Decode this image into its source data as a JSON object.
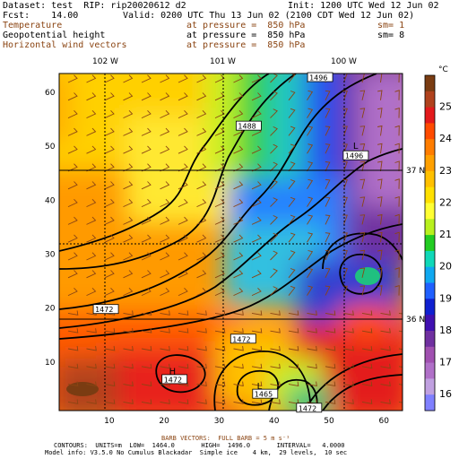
{
  "header": {
    "dataset": "Dataset: test  RIP: rip20020612 d2",
    "init": "Init: 1200 UTC Wed 12 Jun 02",
    "fcst": "Fcst:    14.00",
    "valid": "Valid: 0200 UTC Thu 13 Jun 02 (2100 CDT Wed 12 Jun 02)",
    "rows": [
      {
        "field": "Temperature",
        "level": "at pressure =  850 hPa",
        "extra": "sm= 1"
      },
      {
        "field": "Geopotential height",
        "level": "at pressure =  850 hPa",
        "extra": "sm= 8"
      },
      {
        "field": "Horizontal wind vectors",
        "level": "at pressure =  850 hPa",
        "extra": ""
      }
    ]
  },
  "map": {
    "lon_labels": [
      "102 W",
      "101 W",
      "100 W"
    ],
    "lat_labels": [
      "37 N",
      "36 N"
    ],
    "x_ticks": [
      "10",
      "20",
      "30",
      "40",
      "50",
      "60"
    ],
    "y_ticks": [
      "10",
      "20",
      "30",
      "40",
      "50",
      "60"
    ],
    "height_labels": [
      {
        "text": "1496",
        "x": 48.5,
        "y": 62.5
      },
      {
        "text": "1488",
        "x": 35.5,
        "y": 53.5
      },
      {
        "text": "1496",
        "x": 55,
        "y": 48
      },
      {
        "text": "1472",
        "x": 9.5,
        "y": 19.5
      },
      {
        "text": "1472",
        "x": 34.5,
        "y": 14
      },
      {
        "text": "1472",
        "x": 22,
        "y": 6.5
      },
      {
        "text": "1465",
        "x": 38.5,
        "y": 3.8
      },
      {
        "text": "1472",
        "x": 46.5,
        "y": 1.2
      }
    ],
    "hl_markers": [
      {
        "text": "H",
        "x": 21.5,
        "y": 8.2
      },
      {
        "text": "L",
        "x": 37.5,
        "y": 5.5
      },
      {
        "text": "L",
        "x": 55,
        "y": 50
      }
    ]
  },
  "colorbar": {
    "unit": "°C",
    "labels": [
      "25",
      "24",
      "23",
      "22",
      "21",
      "20",
      "19",
      "18",
      "17",
      "16"
    ],
    "colors": [
      "#7a3c12",
      "#b0421d",
      "#e31a1c",
      "#ff4b00",
      "#ff7d00",
      "#ffa000",
      "#ffc000",
      "#ffe000",
      "#ffff33",
      "#b8f01e",
      "#22cc22",
      "#10d8b8",
      "#10a8f0",
      "#2060ff",
      "#1020d0",
      "#4010b0",
      "#7030a0",
      "#a050b0",
      "#b070c8",
      "#c0a0e0",
      "#8080ff"
    ]
  },
  "footer": {
    "barb_line": "BARB VECTORS:  FULL BARB = 5 m s⁻¹",
    "contour_line": "CONTOURS:  UNITS=m  LOW=  1464.0       HIGH=  1496.0       INTERVAL=   4.0000",
    "model_line": "Model info: V3.5.0 No Cumulus Blackadar  Simple ice    4 km,  29 levels,  10 sec"
  },
  "colors": {
    "brown_text": "#8b4513",
    "barb": "#8b4513",
    "contour": "#000000"
  }
}
